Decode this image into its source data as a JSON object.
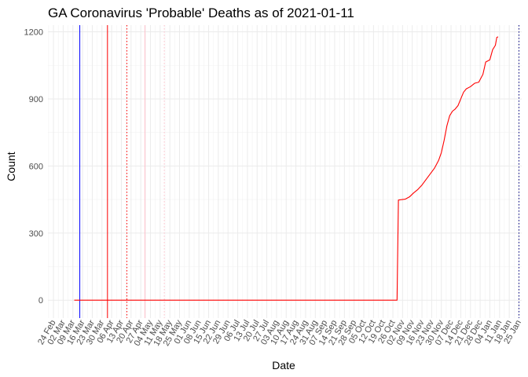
{
  "chart_data": {
    "type": "line",
    "title": "GA Coronavirus 'Probable' Deaths as of 2021-01-11",
    "xlabel": "Date",
    "ylabel": "Count",
    "ylim": [
      -80,
      1230
    ],
    "xlim": [
      "2020-02-20",
      "2021-01-27"
    ],
    "grid": true,
    "y_ticks": [
      0,
      300,
      600,
      900,
      1200
    ],
    "x_ticks": [
      {
        "date": "2020-02-24",
        "label": "24 Feb"
      },
      {
        "date": "2020-03-02",
        "label": "02 Mar"
      },
      {
        "date": "2020-03-09",
        "label": "09 Mar"
      },
      {
        "date": "2020-03-16",
        "label": "16 Mar"
      },
      {
        "date": "2020-03-23",
        "label": "23 Mar"
      },
      {
        "date": "2020-03-30",
        "label": "30 Mar"
      },
      {
        "date": "2020-04-06",
        "label": "06 Apr"
      },
      {
        "date": "2020-04-13",
        "label": "13 Apr"
      },
      {
        "date": "2020-04-20",
        "label": "20 Apr"
      },
      {
        "date": "2020-04-27",
        "label": "27 Apr"
      },
      {
        "date": "2020-05-04",
        "label": "04 May"
      },
      {
        "date": "2020-05-11",
        "label": "11 May"
      },
      {
        "date": "2020-05-18",
        "label": "18 May"
      },
      {
        "date": "2020-05-25",
        "label": "25 May"
      },
      {
        "date": "2020-06-01",
        "label": "01 Jun"
      },
      {
        "date": "2020-06-08",
        "label": "08 Jun"
      },
      {
        "date": "2020-06-15",
        "label": "15 Jun"
      },
      {
        "date": "2020-06-22",
        "label": "22 Jun"
      },
      {
        "date": "2020-06-29",
        "label": "29 Jun"
      },
      {
        "date": "2020-07-06",
        "label": "06 Jul"
      },
      {
        "date": "2020-07-13",
        "label": "13 Jul"
      },
      {
        "date": "2020-07-20",
        "label": "20 Jul"
      },
      {
        "date": "2020-07-27",
        "label": "27 Jul"
      },
      {
        "date": "2020-08-03",
        "label": "03 Aug"
      },
      {
        "date": "2020-08-10",
        "label": "10 Aug"
      },
      {
        "date": "2020-08-17",
        "label": "17 Aug"
      },
      {
        "date": "2020-08-24",
        "label": "24 Aug"
      },
      {
        "date": "2020-08-31",
        "label": "31 Aug"
      },
      {
        "date": "2020-09-07",
        "label": "07 Sep"
      },
      {
        "date": "2020-09-14",
        "label": "14 Sep"
      },
      {
        "date": "2020-09-21",
        "label": "21 Sep"
      },
      {
        "date": "2020-09-28",
        "label": "28 Sep"
      },
      {
        "date": "2020-10-05",
        "label": "05 Oct"
      },
      {
        "date": "2020-10-12",
        "label": "12 Oct"
      },
      {
        "date": "2020-10-19",
        "label": "19 Oct"
      },
      {
        "date": "2020-10-26",
        "label": "26 Oct"
      },
      {
        "date": "2020-11-02",
        "label": "02 Nov"
      },
      {
        "date": "2020-11-09",
        "label": "09 Nov"
      },
      {
        "date": "2020-11-16",
        "label": "16 Nov"
      },
      {
        "date": "2020-11-23",
        "label": "23 Nov"
      },
      {
        "date": "2020-11-30",
        "label": "30 Nov"
      },
      {
        "date": "2020-12-07",
        "label": "07 Dec"
      },
      {
        "date": "2020-12-14",
        "label": "14 Dec"
      },
      {
        "date": "2020-12-21",
        "label": "21 Dec"
      },
      {
        "date": "2020-12-28",
        "label": "28 Dec"
      },
      {
        "date": "2021-01-04",
        "label": "04 Jan"
      },
      {
        "date": "2021-01-11",
        "label": "11 Jan"
      },
      {
        "date": "2021-01-18",
        "label": "18 Jan"
      },
      {
        "date": "2021-01-25",
        "label": "25 Jan"
      }
    ],
    "vlines": [
      {
        "date": "2020-03-14",
        "color": "#0000ff",
        "style": "solid"
      },
      {
        "date": "2020-04-03",
        "color": "#ff0000",
        "style": "solid"
      },
      {
        "date": "2020-04-17",
        "color": "#ff0000",
        "style": "dotted"
      },
      {
        "date": "2020-04-30",
        "color": "#ffc0cb",
        "style": "solid"
      },
      {
        "date": "2020-05-14",
        "color": "#ffc0cb",
        "style": "dotted"
      },
      {
        "date": "2021-01-25",
        "color": "#000080",
        "style": "dotted"
      }
    ],
    "series": [
      {
        "color": "#ff0000",
        "points": [
          [
            "2020-03-10",
            0
          ],
          [
            "2020-10-29",
            0
          ],
          [
            "2020-10-30",
            448
          ],
          [
            "2020-11-04",
            452
          ],
          [
            "2020-11-07",
            462
          ],
          [
            "2020-11-10",
            480
          ],
          [
            "2020-11-13",
            495
          ],
          [
            "2020-11-16",
            515
          ],
          [
            "2020-11-19",
            540
          ],
          [
            "2020-11-22",
            565
          ],
          [
            "2020-11-25",
            590
          ],
          [
            "2020-11-28",
            625
          ],
          [
            "2020-11-30",
            660
          ],
          [
            "2020-12-02",
            715
          ],
          [
            "2020-12-04",
            780
          ],
          [
            "2020-12-06",
            825
          ],
          [
            "2020-12-08",
            845
          ],
          [
            "2020-12-10",
            855
          ],
          [
            "2020-12-12",
            870
          ],
          [
            "2020-12-14",
            900
          ],
          [
            "2020-12-16",
            930
          ],
          [
            "2020-12-18",
            945
          ],
          [
            "2020-12-21",
            955
          ],
          [
            "2020-12-24",
            970
          ],
          [
            "2020-12-27",
            975
          ],
          [
            "2020-12-30",
            1010
          ],
          [
            "2021-01-01",
            1065
          ],
          [
            "2021-01-04",
            1075
          ],
          [
            "2021-01-06",
            1120
          ],
          [
            "2021-01-08",
            1140
          ],
          [
            "2021-01-09",
            1175
          ],
          [
            "2021-01-10",
            1178
          ]
        ]
      }
    ]
  }
}
